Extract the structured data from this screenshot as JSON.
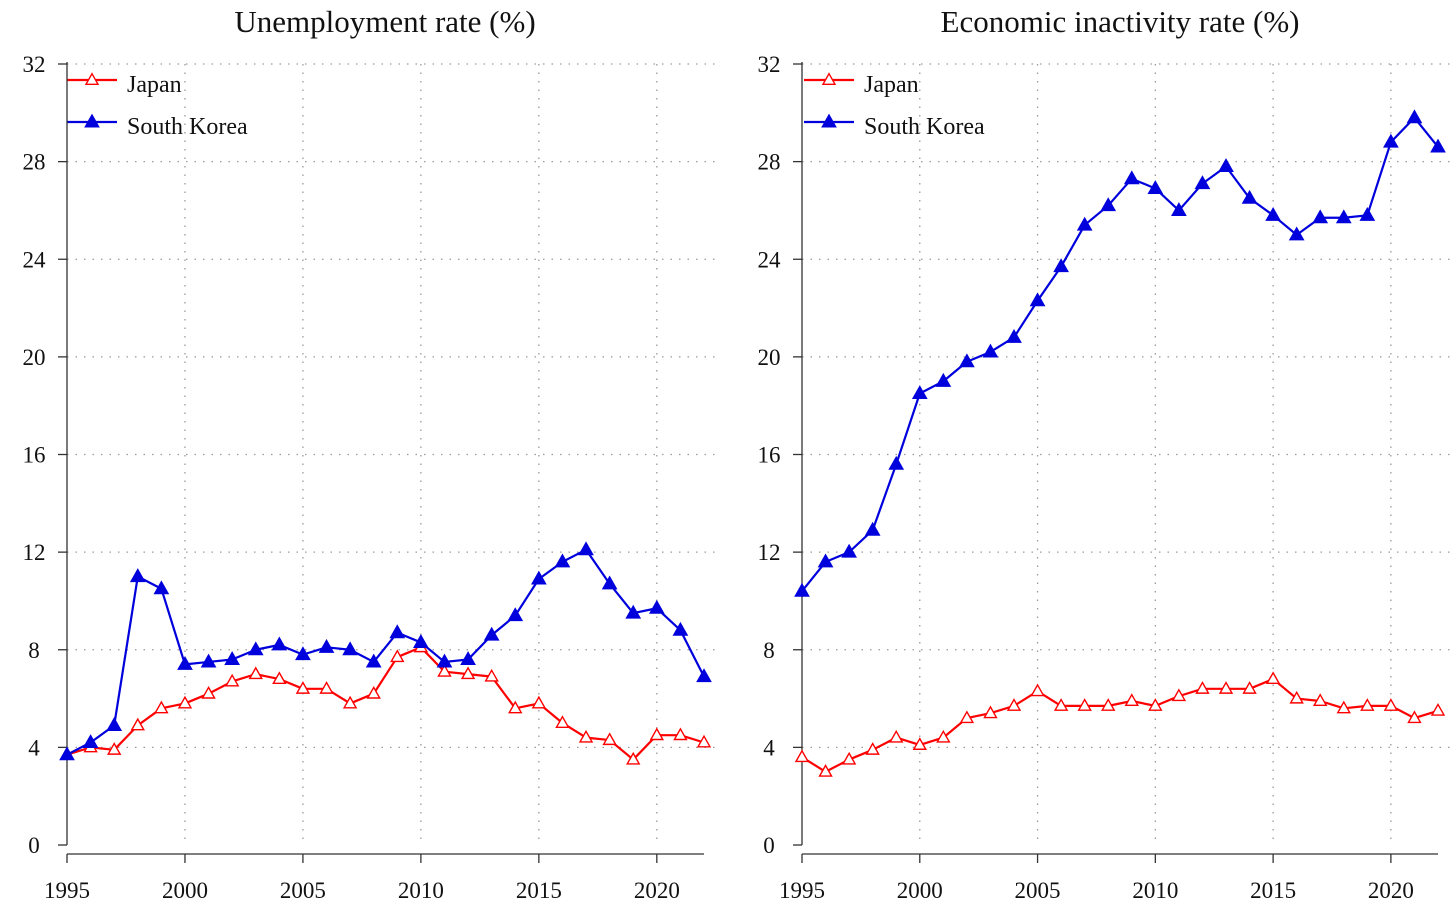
{
  "chart_data": [
    {
      "type": "line",
      "title": "Unemployment rate (%)",
      "xlabel": "",
      "ylabel": "",
      "xlim": [
        1995,
        2022
      ],
      "ylim": [
        0,
        32
      ],
      "x_ticks": [
        1995,
        2000,
        2005,
        2010,
        2015,
        2020
      ],
      "y_ticks": [
        0,
        4,
        8,
        12,
        16,
        20,
        24,
        28,
        32
      ],
      "grid": true,
      "legend_position": "top-left",
      "x": [
        1995,
        1996,
        1997,
        1998,
        1999,
        2000,
        2001,
        2002,
        2003,
        2004,
        2005,
        2006,
        2007,
        2008,
        2009,
        2010,
        2011,
        2012,
        2013,
        2014,
        2015,
        2016,
        2017,
        2018,
        2019,
        2020,
        2021,
        2022
      ],
      "series": [
        {
          "name": "Japan",
          "color": "#ff0000",
          "marker": "hollow-triangle",
          "values": [
            3.7,
            4.0,
            3.9,
            4.9,
            5.6,
            5.8,
            6.2,
            6.7,
            7.0,
            6.8,
            6.4,
            6.4,
            5.8,
            6.2,
            7.7,
            8.1,
            7.1,
            7.0,
            6.9,
            5.6,
            5.8,
            5.0,
            4.4,
            4.3,
            3.5,
            4.5,
            4.5,
            4.2
          ]
        },
        {
          "name": "South Korea",
          "color": "#0000dd",
          "marker": "filled-triangle",
          "values": [
            3.7,
            4.2,
            4.9,
            11.0,
            10.5,
            7.4,
            7.5,
            7.6,
            8.0,
            8.2,
            7.8,
            8.1,
            8.0,
            7.5,
            8.7,
            8.3,
            7.5,
            7.6,
            8.6,
            9.4,
            10.9,
            11.6,
            12.1,
            10.7,
            9.5,
            9.7,
            8.8,
            6.9
          ]
        }
      ]
    },
    {
      "type": "line",
      "title": "Economic inactivity rate (%)",
      "xlabel": "",
      "ylabel": "",
      "xlim": [
        1995,
        2022
      ],
      "ylim": [
        0,
        32
      ],
      "x_ticks": [
        1995,
        2000,
        2005,
        2010,
        2015,
        2020
      ],
      "y_ticks": [
        0,
        4,
        8,
        12,
        16,
        20,
        24,
        28,
        32
      ],
      "grid": true,
      "legend_position": "top-left",
      "x": [
        1995,
        1996,
        1997,
        1998,
        1999,
        2000,
        2001,
        2002,
        2003,
        2004,
        2005,
        2006,
        2007,
        2008,
        2009,
        2010,
        2011,
        2012,
        2013,
        2014,
        2015,
        2016,
        2017,
        2018,
        2019,
        2020,
        2021,
        2022
      ],
      "series": [
        {
          "name": "Japan",
          "color": "#ff0000",
          "marker": "hollow-triangle",
          "values": [
            3.6,
            3.0,
            3.5,
            3.9,
            4.4,
            4.1,
            4.4,
            5.2,
            5.4,
            5.7,
            6.3,
            5.7,
            5.7,
            5.7,
            5.9,
            5.7,
            6.1,
            6.4,
            6.4,
            6.4,
            6.8,
            6.0,
            5.9,
            5.6,
            5.7,
            5.7,
            5.2,
            5.5
          ]
        },
        {
          "name": "South Korea",
          "color": "#0000dd",
          "marker": "filled-triangle",
          "values": [
            10.4,
            11.6,
            12.0,
            12.9,
            15.6,
            18.5,
            19.0,
            19.8,
            20.2,
            20.8,
            22.3,
            23.7,
            25.4,
            26.2,
            27.3,
            26.9,
            26.0,
            27.1,
            27.8,
            26.5,
            25.8,
            25.0,
            25.7,
            25.7,
            25.8,
            28.8,
            29.8,
            28.6
          ]
        }
      ]
    }
  ]
}
